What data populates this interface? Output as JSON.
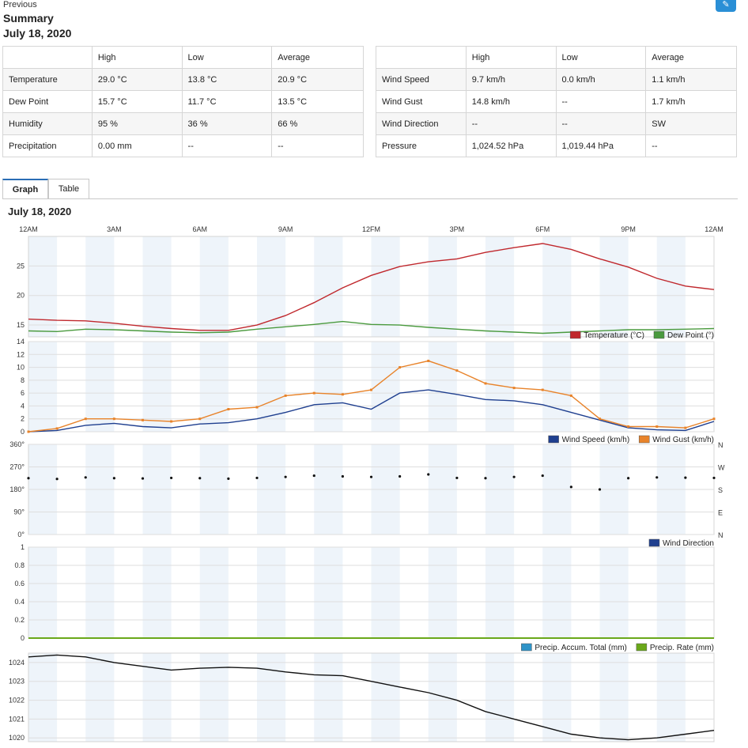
{
  "header": {
    "previous_label": "Previous",
    "title": "Summary",
    "date": "July 18, 2020",
    "corner_icon": "edit-icon"
  },
  "summary_left": {
    "columns": [
      "",
      "High",
      "Low",
      "Average"
    ],
    "rows": [
      [
        "Temperature",
        "29.0 °C",
        "13.8 °C",
        "20.9 °C"
      ],
      [
        "Dew Point",
        "15.7 °C",
        "11.7 °C",
        "13.5 °C"
      ],
      [
        "Humidity",
        "95 %",
        "36 %",
        "66 %"
      ],
      [
        "Precipitation",
        "0.00 mm",
        "--",
        "--"
      ]
    ]
  },
  "summary_right": {
    "columns": [
      "",
      "High",
      "Low",
      "Average"
    ],
    "rows": [
      [
        "Wind Speed",
        "9.7 km/h",
        "0.0 km/h",
        "1.1 km/h"
      ],
      [
        "Wind Gust",
        "14.8 km/h",
        "--",
        "1.7 km/h"
      ],
      [
        "Wind Direction",
        "--",
        "--",
        "SW"
      ],
      [
        "Pressure",
        "1,024.52 hPa",
        "1,019.44 hPa",
        "--"
      ]
    ]
  },
  "tabs": [
    "Graph",
    "Table"
  ],
  "graph_date": "July 18, 2020",
  "chart_data": [
    {
      "type": "line",
      "x_tick_labels": [
        "12AM",
        "3AM",
        "6AM",
        "9AM",
        "12FM",
        "3PM",
        "6FM",
        "9PM",
        "12AM"
      ],
      "x_hours": [
        0,
        1,
        2,
        3,
        4,
        5,
        6,
        7,
        8,
        9,
        10,
        11,
        12,
        13,
        14,
        15,
        16,
        17,
        18,
        19,
        20,
        21,
        22,
        23,
        24
      ],
      "y_ticks": [
        15,
        20,
        25
      ],
      "ylim": [
        13,
        30
      ],
      "series": [
        {
          "name": "Temperature (°C)",
          "color": "#c0282d",
          "values": [
            16.0,
            15.8,
            15.7,
            15.3,
            14.8,
            14.4,
            14.1,
            14.1,
            15.0,
            16.6,
            18.8,
            21.3,
            23.4,
            24.9,
            25.7,
            26.2,
            27.3,
            28.1,
            28.8,
            27.8,
            26.2,
            24.8,
            22.9,
            21.6,
            21.0
          ]
        },
        {
          "name": "Dew Point (°)",
          "color": "#4a9a3e",
          "values": [
            14.0,
            13.9,
            14.3,
            14.2,
            14.0,
            13.8,
            13.7,
            13.8,
            14.3,
            14.7,
            15.1,
            15.6,
            15.1,
            15.0,
            14.6,
            14.3,
            14.0,
            13.8,
            13.6,
            13.8,
            14.0,
            14.2,
            14.2,
            14.3,
            14.4
          ]
        }
      ]
    },
    {
      "type": "line",
      "y_ticks": [
        0,
        2,
        4,
        6,
        8,
        10,
        12,
        14
      ],
      "ylim": [
        0,
        14
      ],
      "series": [
        {
          "name": "Wind Speed (km/h)",
          "color": "#1f3f8f",
          "values": [
            0.0,
            0.2,
            1.0,
            1.3,
            0.8,
            0.6,
            1.2,
            1.4,
            2.0,
            3.0,
            4.2,
            4.5,
            3.5,
            6.0,
            6.5,
            5.8,
            5.0,
            4.8,
            4.2,
            3.0,
            1.8,
            0.6,
            0.3,
            0.2,
            1.6
          ]
        },
        {
          "name": "Wind Gust (km/h)",
          "color": "#e8832a",
          "values": [
            0.0,
            0.5,
            2.0,
            2.0,
            1.8,
            1.6,
            2.0,
            3.5,
            3.8,
            5.6,
            6.0,
            5.8,
            6.5,
            10.0,
            11.0,
            9.5,
            7.5,
            6.8,
            6.5,
            5.6,
            2.0,
            0.8,
            0.8,
            0.6,
            2.0
          ]
        }
      ]
    },
    {
      "type": "scatter",
      "y_ticks": [
        0,
        90,
        180,
        270,
        360
      ],
      "y_tick_labels": [
        "0°",
        "90°",
        "180°",
        "270°",
        "360°"
      ],
      "y_right_labels": [
        "N",
        "E",
        "S",
        "W",
        "N"
      ],
      "ylim": [
        0,
        360
      ],
      "series": [
        {
          "name": "Wind Direction",
          "color": "#1f3f8f",
          "values": [
            225,
            222,
            228,
            225,
            224,
            226,
            225,
            223,
            226,
            230,
            235,
            232,
            230,
            232,
            240,
            226,
            225,
            230,
            235,
            190,
            180,
            225,
            228,
            227,
            226
          ]
        }
      ]
    },
    {
      "type": "line",
      "y_ticks": [
        0,
        0.2,
        0.4,
        0.6,
        0.8,
        1
      ],
      "ylim": [
        0,
        1
      ],
      "series": [
        {
          "name": "Precip. Accum. Total (mm)",
          "color": "#2f94c8",
          "values": [
            0,
            0,
            0,
            0,
            0,
            0,
            0,
            0,
            0,
            0,
            0,
            0,
            0,
            0,
            0,
            0,
            0,
            0,
            0,
            0,
            0,
            0,
            0,
            0,
            0
          ]
        },
        {
          "name": "Precip. Rate (mm)",
          "color": "#6aa81a",
          "values": [
            0,
            0,
            0,
            0,
            0,
            0,
            0,
            0,
            0,
            0,
            0,
            0,
            0,
            0,
            0,
            0,
            0,
            0,
            0,
            0,
            0,
            0,
            0,
            0,
            0
          ]
        }
      ]
    },
    {
      "type": "line",
      "y_ticks": [
        1020,
        1021,
        1022,
        1023,
        1024
      ],
      "ylim": [
        1019.8,
        1024.5
      ],
      "series": [
        {
          "name": "Pressure",
          "color": "#111111",
          "values": [
            1024.3,
            1024.4,
            1024.3,
            1024.0,
            1023.8,
            1023.6,
            1023.7,
            1023.75,
            1023.7,
            1023.5,
            1023.35,
            1023.3,
            1023.0,
            1022.7,
            1022.4,
            1022.0,
            1021.4,
            1021.0,
            1020.6,
            1020.2,
            1020.0,
            1019.9,
            1020.0,
            1020.2,
            1020.4
          ]
        }
      ]
    }
  ]
}
